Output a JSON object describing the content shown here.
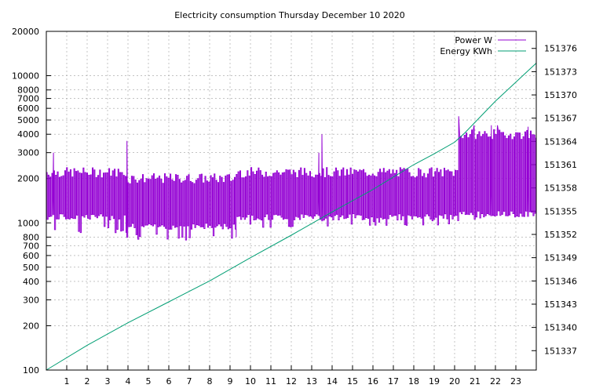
{
  "chart_data": {
    "type": "line",
    "title": "Electricity consumption Thursday December 10 2020",
    "grid": true,
    "legend_position": "top-right",
    "x": {
      "range": [
        0,
        24
      ],
      "ticks": [
        1,
        2,
        3,
        4,
        5,
        6,
        7,
        8,
        9,
        10,
        11,
        12,
        13,
        14,
        15,
        16,
        17,
        18,
        19,
        20,
        21,
        22,
        23
      ]
    },
    "y_left": {
      "scale": "log",
      "range": [
        100,
        20000
      ],
      "ticks": [
        100,
        200,
        300,
        400,
        500,
        600,
        700,
        800,
        1000,
        2000,
        3000,
        4000,
        5000,
        6000,
        7000,
        8000,
        10000,
        20000
      ]
    },
    "y_right": {
      "scale": "linear",
      "range": [
        151334.5,
        151378.2
      ],
      "ticks": [
        151337,
        151340,
        151343,
        151346,
        151349,
        151352,
        151355,
        151358,
        151361,
        151364,
        151367,
        151370,
        151373,
        151376
      ]
    },
    "series": [
      {
        "name": "Power W",
        "color": "#9400d3",
        "axis": "left",
        "pattern": "cycling",
        "segments": [
          {
            "x": [
              0.0,
              3.9
            ],
            "low": 1100,
            "high": 2200,
            "spike_low": 900
          },
          {
            "x": [
              3.9,
              9.3
            ],
            "low": 950,
            "high": 2000,
            "spike_low": 800
          },
          {
            "x": [
              9.3,
              13.0
            ],
            "low": 1100,
            "high": 2200,
            "spike_low": 950
          },
          {
            "x": [
              13.0,
              20.2
            ],
            "low": 1100,
            "high": 2200,
            "spike_low": 1000
          },
          {
            "x": [
              20.2,
              24.0
            ],
            "low": 1150,
            "high": 4000,
            "spike_low": 1100
          }
        ],
        "spikes": [
          {
            "x": 0.35,
            "value": 3000
          },
          {
            "x": 3.95,
            "value": 3600
          },
          {
            "x": 13.35,
            "value": 3000
          },
          {
            "x": 13.5,
            "value": 4000
          },
          {
            "x": 20.2,
            "value": 5300
          },
          {
            "x": 20.95,
            "value": 4600
          },
          {
            "x": 21.8,
            "value": 4600
          },
          {
            "x": 22.1,
            "value": 4600
          },
          {
            "x": 23.6,
            "value": 4500
          }
        ]
      },
      {
        "name": "Energy KWh",
        "color": "#009e73",
        "axis": "right",
        "x": [
          0,
          2,
          4,
          6,
          8,
          10,
          12,
          14,
          16,
          18,
          19,
          20,
          20.5,
          22,
          24
        ],
        "y": [
          151334.5,
          151337.7,
          151340.6,
          151343.3,
          151346.0,
          151349.0,
          151351.9,
          151354.9,
          151357.8,
          151361.0,
          151362.4,
          151363.9,
          151365.1,
          151369.2,
          151374.1
        ]
      }
    ]
  }
}
